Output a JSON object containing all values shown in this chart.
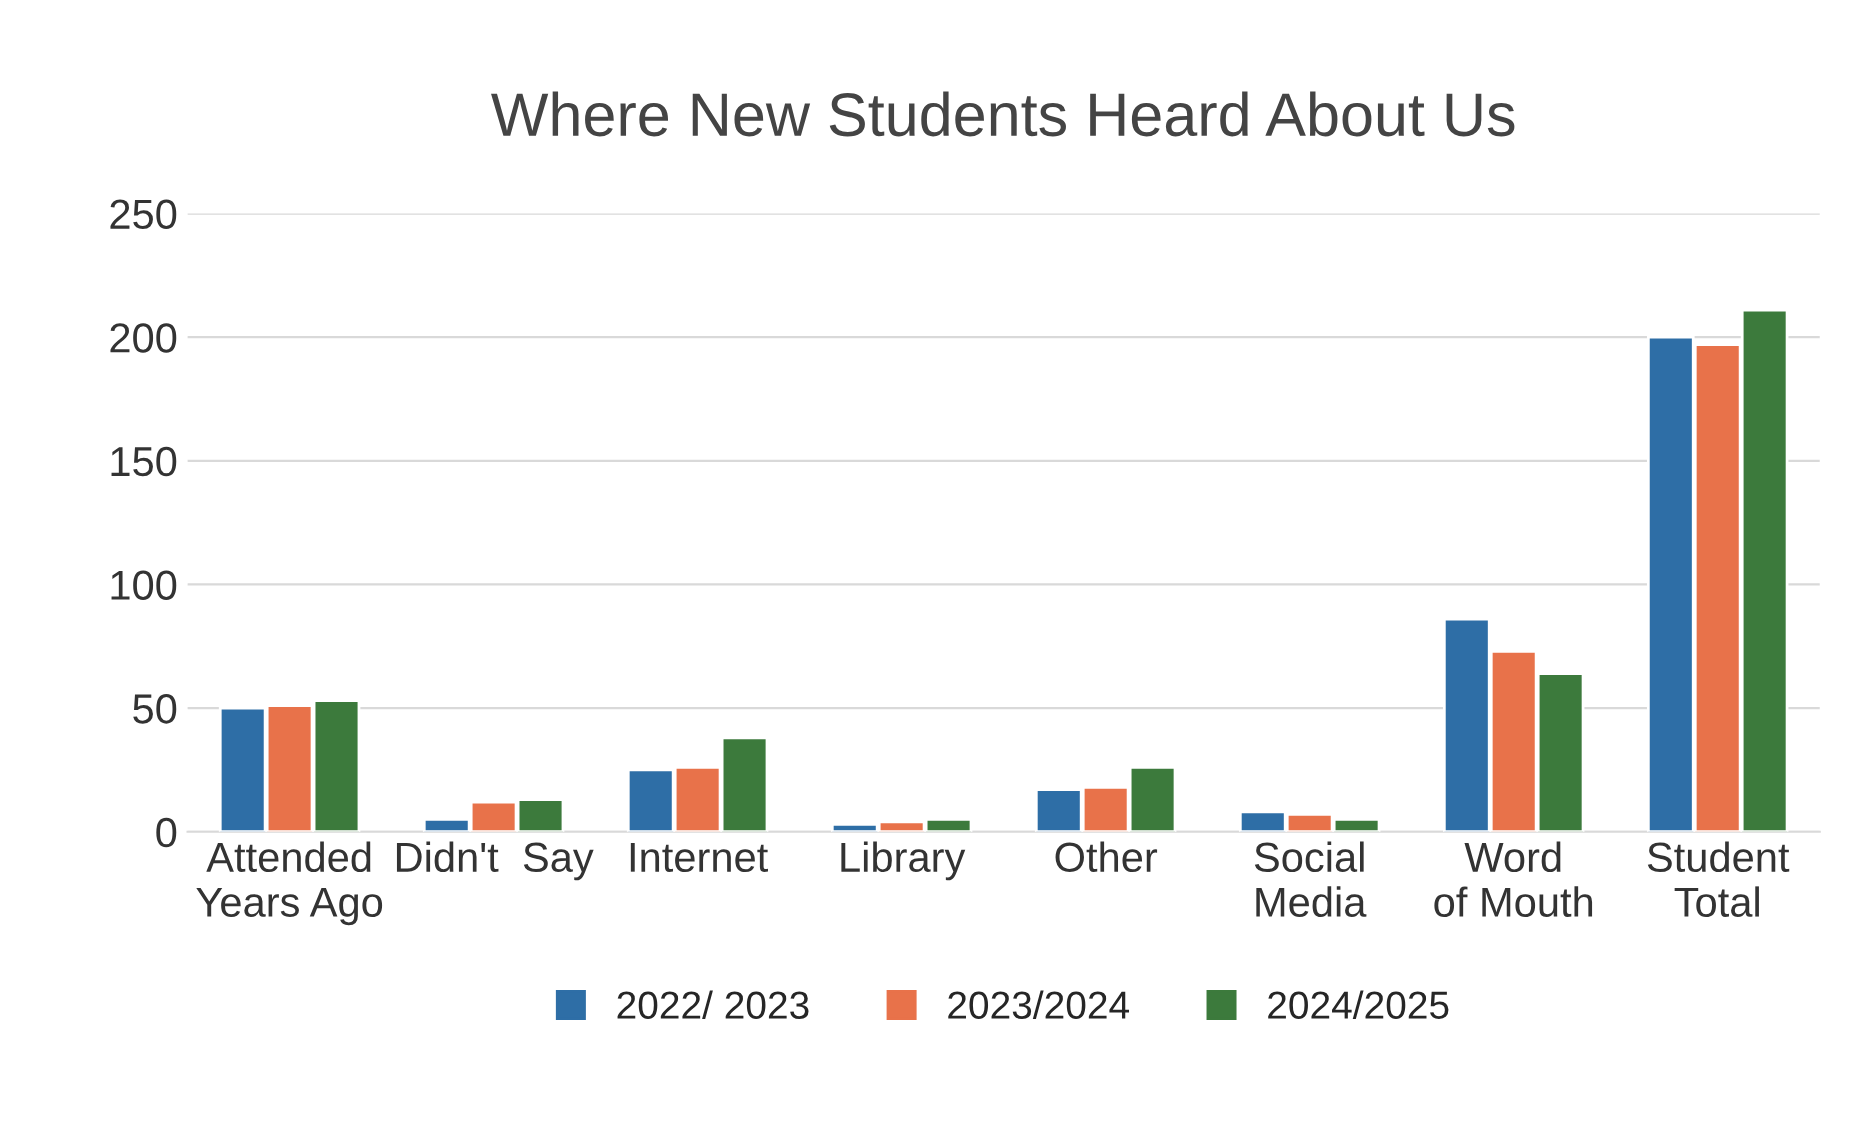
{
  "chart_data": {
    "type": "bar",
    "title": "Where New Students Heard About Us",
    "categories": [
      "Attended Years Ago",
      "Didn't  Say",
      "Internet",
      "Library",
      "Other",
      "Social Media",
      "Word of Mouth",
      "Student Total"
    ],
    "series": [
      {
        "name": "2022/ 2023",
        "color": "#2e6ea6",
        "values": [
          50,
          5,
          25,
          3,
          17,
          8,
          86,
          200
        ]
      },
      {
        "name": "2023/2024",
        "color": "#e8724a",
        "values": [
          51,
          12,
          26,
          4,
          18,
          7,
          73,
          197
        ]
      },
      {
        "name": "2024/2025",
        "color": "#3c7a3c",
        "values": [
          53,
          13,
          38,
          5,
          26,
          5,
          64,
          211
        ]
      }
    ],
    "ylim": [
      0,
      250
    ],
    "yticks": [
      0,
      50,
      100,
      150,
      200,
      250
    ],
    "grid": "y",
    "legend": "bottom"
  }
}
